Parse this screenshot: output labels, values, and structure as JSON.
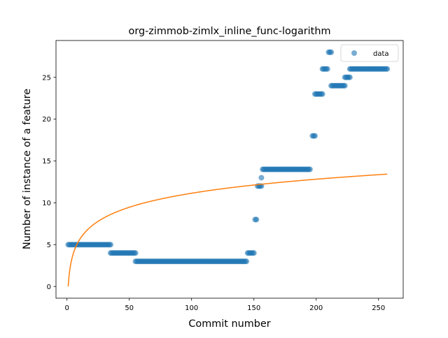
{
  "chart_data": {
    "type": "scatter",
    "title": "org-zimmob-zimlx_inline_func-logarithm",
    "xlabel": "Commit number",
    "ylabel": "Number of instance of a feature",
    "xlim": [
      -8.8,
      269.8
    ],
    "ylim": [
      -1.4,
      29.4
    ],
    "xticks": [
      0,
      50,
      100,
      150,
      200,
      250
    ],
    "yticks": [
      0,
      5,
      10,
      15,
      20,
      25
    ],
    "grid": false,
    "legend": {
      "placement": "top-right",
      "entries": [
        "data"
      ]
    },
    "series": [
      {
        "name": "data",
        "kind": "scatter",
        "color": "#1f77b4",
        "segments": [
          {
            "x_from": 1,
            "x_to": 35,
            "y": 5
          },
          {
            "x_from": 35,
            "x_to": 55,
            "y": 4
          },
          {
            "x_from": 55,
            "x_to": 144,
            "y": 3
          },
          {
            "x_from": 145,
            "x_to": 150,
            "y": 4
          },
          {
            "x_from": 151,
            "x_to": 152,
            "y": 8
          },
          {
            "x_from": 153,
            "x_to": 156,
            "y": 12
          },
          {
            "x_from": 156,
            "x_to": 156,
            "y": 13
          },
          {
            "x_from": 157,
            "x_to": 195,
            "y": 14
          },
          {
            "x_from": 197,
            "x_to": 199,
            "y": 18
          },
          {
            "x_from": 199,
            "x_to": 205,
            "y": 23
          },
          {
            "x_from": 205,
            "x_to": 209,
            "y": 26
          },
          {
            "x_from": 210,
            "x_to": 212,
            "y": 28
          },
          {
            "x_from": 212,
            "x_to": 223,
            "y": 24
          },
          {
            "x_from": 223,
            "x_to": 227,
            "y": 25
          },
          {
            "x_from": 227,
            "x_to": 257,
            "y": 26
          }
        ]
      },
      {
        "name": "",
        "kind": "line",
        "color": "#ff7f0e",
        "model": "y = a * ln(x)",
        "a": 2.42,
        "x_range": [
          1,
          257
        ]
      }
    ]
  }
}
